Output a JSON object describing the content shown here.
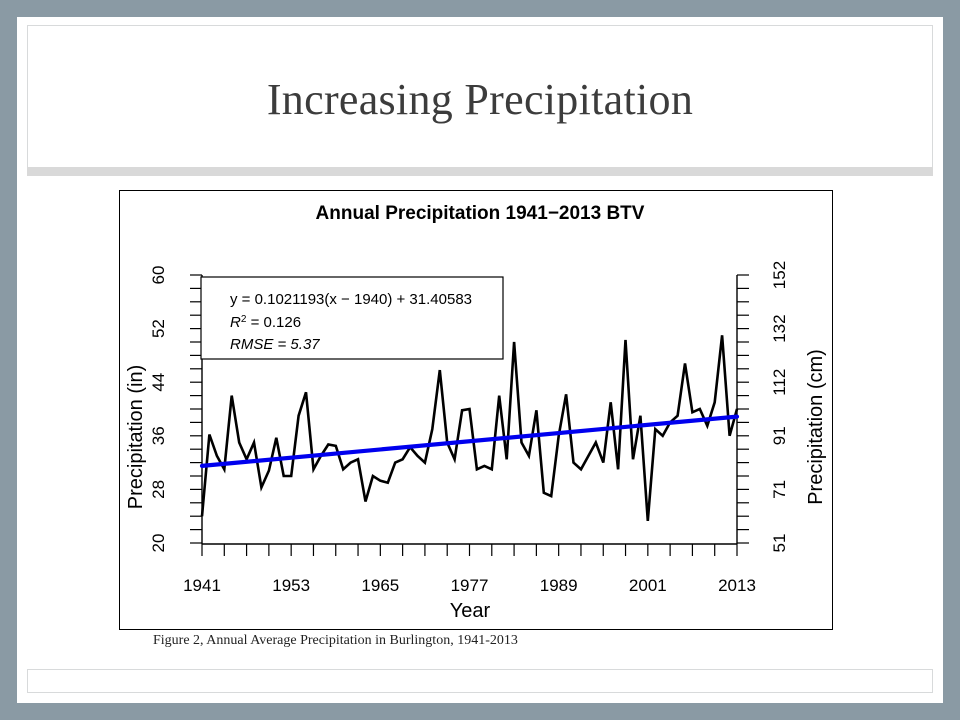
{
  "slide": {
    "title": "Increasing Precipitation",
    "caption": "Figure 2, Annual Average Precipitation in Burlington, 1941-2013"
  },
  "chart_data": {
    "type": "line",
    "title": "Annual Precipitation 1941−2013 BTV",
    "xlabel": "Year",
    "ylabel": "Precipitation (in)",
    "y2label": "Precipitation (cm)",
    "xlim": [
      1941,
      2013
    ],
    "ylim": [
      20,
      60
    ],
    "x_ticks": [
      1941,
      1953,
      1965,
      1977,
      1989,
      2001,
      2013
    ],
    "y_ticks": [
      20,
      28,
      36,
      44,
      52,
      60
    ],
    "y2_ticks": [
      "51",
      "71",
      "91",
      "112",
      "132",
      "152"
    ],
    "grid": false,
    "legend": {
      "placement": "top-left",
      "equation": "y = 0.1021193(x − 1940) + 31.40583",
      "r2_label": "R",
      "r2_sup": "2",
      "r2_value": " = 0.126",
      "rmse": "RMSE = 5.37"
    },
    "trend": {
      "slope": 0.1021193,
      "x0": 1940,
      "intercept": 31.40583,
      "color": "#0000ee"
    },
    "series": [
      {
        "color": "#000000",
        "x": [
          1941,
          1942,
          1943,
          1944,
          1945,
          1946,
          1947,
          1948,
          1949,
          1950,
          1951,
          1952,
          1953,
          1954,
          1955,
          1956,
          1957,
          1958,
          1959,
          1960,
          1961,
          1962,
          1963,
          1964,
          1965,
          1966,
          1967,
          1968,
          1969,
          1970,
          1971,
          1972,
          1973,
          1974,
          1975,
          1976,
          1977,
          1978,
          1979,
          1980,
          1981,
          1982,
          1983,
          1984,
          1985,
          1986,
          1987,
          1988,
          1989,
          1990,
          1991,
          1992,
          1993,
          1994,
          1995,
          1996,
          1997,
          1998,
          1999,
          2000,
          2001,
          2002,
          2003,
          2004,
          2005,
          2006,
          2007,
          2008,
          2009,
          2010,
          2011,
          2012,
          2013
        ],
        "values": [
          24.0,
          36.2,
          33.0,
          31.0,
          42.0,
          35.0,
          32.5,
          35.0,
          28.3,
          30.8,
          35.7,
          30.0,
          30.0,
          39.0,
          42.5,
          31.0,
          33.0,
          34.7,
          34.5,
          31.0,
          32.0,
          32.5,
          26.2,
          30.0,
          29.3,
          29.0,
          32.0,
          32.5,
          34.3,
          33.0,
          32.0,
          37.0,
          45.8,
          35.0,
          32.5,
          39.8,
          40.0,
          31.0,
          31.5,
          31.0,
          42.0,
          32.5,
          50.0,
          35.0,
          33.0,
          39.8,
          27.5,
          27.0,
          36.0,
          42.2,
          32.0,
          31.0,
          33.0,
          35.0,
          32.0,
          41.0,
          31.0,
          50.3,
          32.5,
          39.0,
          23.3,
          37.0,
          36.0,
          38.0,
          39.0,
          46.8,
          39.5,
          40.0,
          37.5,
          41.0,
          51.0,
          36.0,
          40.0
        ]
      }
    ]
  }
}
